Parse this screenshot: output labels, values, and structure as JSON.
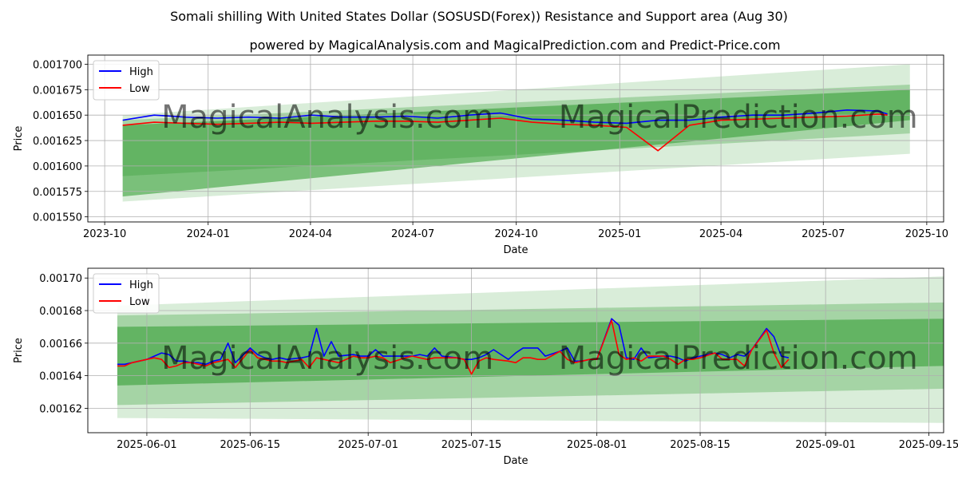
{
  "title": "Somali shilling With United States Dollar (SOSUSD(Forex)) Resistance and Support area (Aug 30)",
  "subtitle": "powered by MagicalAnalysis.com and MagicalPrediction.com and Predict-Price.com",
  "watermark": {
    "top_left": "MagicalAnalysis.com",
    "top_right": "MagicalPrediction.com",
    "bottom_left": "MagicalAnalysis.com",
    "bottom_right": "MagicalPrediction.com"
  },
  "colors": {
    "high": "#0000ff",
    "low": "#ff0000",
    "band": "#2e9a2e"
  },
  "chart_data": [
    {
      "type": "line",
      "xlabel": "Date",
      "ylabel": "Price",
      "x_ticks": [
        "2023-10",
        "2024-01",
        "2024-04",
        "2024-07",
        "2024-10",
        "2025-01",
        "2025-04",
        "2025-07",
        "2025-10"
      ],
      "y_ticks": [
        "0.00155",
        "0.001575",
        "0.0016",
        "0.001625",
        "0.00165",
        "0.001675",
        "0.0017"
      ],
      "y_tick_labels": [
        "0.001550",
        "0.001575",
        "0.001600",
        "0.001625",
        "0.001650",
        "0.001675",
        "0.001700"
      ],
      "xlim": [
        "2023-09-16",
        "2025-10-16"
      ],
      "ylim": [
        0.001545,
        0.001709
      ],
      "legend": "top-left",
      "grid": true,
      "series": [
        {
          "name": "High",
          "x": [
            "2023-10-17",
            "2023-11-14",
            "2023-12-12",
            "2024-01-09",
            "2024-02-06",
            "2024-03-05",
            "2024-04-02",
            "2024-04-30",
            "2024-05-28",
            "2024-06-25",
            "2024-07-23",
            "2024-08-20",
            "2024-09-17",
            "2024-10-15",
            "2024-11-12",
            "2024-12-10",
            "2025-01-07",
            "2025-02-04",
            "2025-03-04",
            "2025-04-01",
            "2025-04-29",
            "2025-05-27",
            "2025-06-24",
            "2025-07-22",
            "2025-08-19",
            "2025-08-27"
          ],
          "values": [
            0.001645,
            0.00165,
            0.001648,
            0.001647,
            0.001648,
            0.001647,
            0.00165,
            0.001648,
            0.001648,
            0.001649,
            0.001647,
            0.00165,
            0.001652,
            0.001646,
            0.001645,
            0.001643,
            0.001642,
            0.001645,
            0.001645,
            0.001648,
            0.00165,
            0.00165,
            0.001652,
            0.001655,
            0.001654,
            0.001651
          ]
        },
        {
          "name": "Low",
          "x": [
            "2023-10-17",
            "2023-11-14",
            "2023-12-12",
            "2024-01-09",
            "2024-02-06",
            "2024-03-05",
            "2024-04-02",
            "2024-04-30",
            "2024-05-28",
            "2024-06-25",
            "2024-07-23",
            "2024-08-20",
            "2024-09-17",
            "2024-10-15",
            "2024-11-12",
            "2024-12-10",
            "2025-01-07",
            "2025-02-04",
            "2025-03-04",
            "2025-04-01",
            "2025-04-29",
            "2025-05-27",
            "2025-06-24",
            "2025-07-22",
            "2025-08-19",
            "2025-08-27"
          ],
          "values": [
            0.00164,
            0.001643,
            0.001642,
            0.001641,
            0.001642,
            0.001643,
            0.001642,
            0.001643,
            0.001644,
            0.001644,
            0.001643,
            0.001645,
            0.001647,
            0.001643,
            0.001641,
            0.00164,
            0.001638,
            0.001615,
            0.00164,
            0.001645,
            0.001646,
            0.001647,
            0.001648,
            0.001649,
            0.001651,
            0.00165
          ]
        }
      ],
      "bands": [
        {
          "x": [
            "2023-10-17",
            "2025-09-16"
          ],
          "lower": [
            0.00157,
            0.001645
          ],
          "upper": [
            0.00164,
            0.001675
          ]
        },
        {
          "x": [
            "2023-10-17",
            "2025-09-16"
          ],
          "lower": [
            0.00159,
            0.001632
          ],
          "upper": [
            0.001645,
            0.00168
          ]
        },
        {
          "x": [
            "2023-10-17",
            "2025-09-16"
          ],
          "lower": [
            0.001565,
            0.001612
          ],
          "upper": [
            0.00165,
            0.0017
          ]
        }
      ]
    },
    {
      "type": "line",
      "xlabel": "Date",
      "ylabel": "Price",
      "x_ticks": [
        "2025-06-01",
        "2025-06-15",
        "2025-07-01",
        "2025-07-15",
        "2025-08-01",
        "2025-08-15",
        "2025-09-01",
        "2025-09-15"
      ],
      "y_ticks": [
        "0.00162",
        "0.00164",
        "0.00166",
        "0.00168",
        "0.0017"
      ],
      "y_tick_labels": [
        "0.00162",
        "0.00164",
        "0.00166",
        "0.00168",
        "0.00170"
      ],
      "xlim": [
        "2025-05-24",
        "2025-09-17"
      ],
      "ylim": [
        0.001605,
        0.001706
      ],
      "legend": "top-left",
      "grid": true,
      "series": [
        {
          "name": "High",
          "x": [
            "2025-05-28",
            "2025-05-29",
            "2025-05-30",
            "2025-06-01",
            "2025-06-02",
            "2025-06-03",
            "2025-06-04",
            "2025-06-05",
            "2025-06-06",
            "2025-06-07",
            "2025-06-08",
            "2025-06-09",
            "2025-06-10",
            "2025-06-11",
            "2025-06-12",
            "2025-06-13",
            "2025-06-15",
            "2025-06-16",
            "2025-06-17",
            "2025-06-18",
            "2025-06-19",
            "2025-06-20",
            "2025-06-22",
            "2025-06-23",
            "2025-06-24",
            "2025-06-25",
            "2025-06-26",
            "2025-06-27",
            "2025-06-29",
            "2025-06-30",
            "2025-07-01",
            "2025-07-02",
            "2025-07-03",
            "2025-07-04",
            "2025-07-06",
            "2025-07-07",
            "2025-07-08",
            "2025-07-09",
            "2025-07-10",
            "2025-07-11",
            "2025-07-13",
            "2025-07-14",
            "2025-07-15",
            "2025-07-16",
            "2025-07-17",
            "2025-07-18",
            "2025-07-20",
            "2025-07-21",
            "2025-07-22",
            "2025-07-23",
            "2025-07-24",
            "2025-07-25",
            "2025-07-27",
            "2025-07-28",
            "2025-07-29",
            "2025-07-30",
            "2025-07-31",
            "2025-08-01",
            "2025-08-03",
            "2025-08-04",
            "2025-08-05",
            "2025-08-06",
            "2025-08-07",
            "2025-08-08",
            "2025-08-10",
            "2025-08-11",
            "2025-08-12",
            "2025-08-13",
            "2025-08-14",
            "2025-08-15",
            "2025-08-17",
            "2025-08-18",
            "2025-08-19",
            "2025-08-20",
            "2025-08-21",
            "2025-08-22",
            "2025-08-24",
            "2025-08-25",
            "2025-08-26",
            "2025-08-27"
          ],
          "values": [
            0.001647,
            0.001647,
            0.001648,
            0.00165,
            0.001652,
            0.001654,
            0.001653,
            0.001649,
            0.001649,
            0.001648,
            0.001648,
            0.001647,
            0.001649,
            0.00165,
            0.00166,
            0.001648,
            0.001657,
            0.001653,
            0.001651,
            0.00165,
            0.001651,
            0.00165,
            0.001651,
            0.001652,
            0.001669,
            0.001652,
            0.001661,
            0.001652,
            0.001653,
            0.001652,
            0.001652,
            0.001656,
            0.001652,
            0.001652,
            0.001652,
            0.001652,
            0.001653,
            0.001652,
            0.001657,
            0.001652,
            0.001651,
            0.00165,
            0.00165,
            0.001651,
            0.001653,
            0.001656,
            0.00165,
            0.001654,
            0.001657,
            0.001657,
            0.001657,
            0.001652,
            0.001655,
            0.001657,
            0.001649,
            0.001649,
            0.00165,
            0.00165,
            0.001675,
            0.001671,
            0.001651,
            0.00165,
            0.001657,
            0.001651,
            0.001652,
            0.001652,
            0.001651,
            0.001649,
            0.001651,
            0.001652,
            0.001654,
            0.001653,
            0.001651,
            0.001653,
            0.001652,
            0.001656,
            0.001669,
            0.001664,
            0.001652,
            0.001651
          ]
        },
        {
          "name": "Low",
          "x": [
            "2025-05-28",
            "2025-05-29",
            "2025-05-30",
            "2025-06-01",
            "2025-06-02",
            "2025-06-03",
            "2025-06-04",
            "2025-06-05",
            "2025-06-06",
            "2025-06-07",
            "2025-06-08",
            "2025-06-09",
            "2025-06-10",
            "2025-06-11",
            "2025-06-12",
            "2025-06-13",
            "2025-06-15",
            "2025-06-16",
            "2025-06-17",
            "2025-06-18",
            "2025-06-19",
            "2025-06-20",
            "2025-06-22",
            "2025-06-23",
            "2025-06-24",
            "2025-06-25",
            "2025-06-26",
            "2025-06-27",
            "2025-06-29",
            "2025-06-30",
            "2025-07-01",
            "2025-07-02",
            "2025-07-03",
            "2025-07-04",
            "2025-07-06",
            "2025-07-07",
            "2025-07-08",
            "2025-07-09",
            "2025-07-10",
            "2025-07-11",
            "2025-07-13",
            "2025-07-14",
            "2025-07-15",
            "2025-07-16",
            "2025-07-17",
            "2025-07-18",
            "2025-07-20",
            "2025-07-21",
            "2025-07-22",
            "2025-07-23",
            "2025-07-24",
            "2025-07-25",
            "2025-07-27",
            "2025-07-28",
            "2025-07-29",
            "2025-07-30",
            "2025-07-31",
            "2025-08-01",
            "2025-08-03",
            "2025-08-04",
            "2025-08-05",
            "2025-08-06",
            "2025-08-07",
            "2025-08-08",
            "2025-08-10",
            "2025-08-11",
            "2025-08-12",
            "2025-08-13",
            "2025-08-14",
            "2025-08-15",
            "2025-08-17",
            "2025-08-18",
            "2025-08-19",
            "2025-08-20",
            "2025-08-21",
            "2025-08-22",
            "2025-08-24",
            "2025-08-25",
            "2025-08-26",
            "2025-08-27"
          ],
          "values": [
            0.001646,
            0.001646,
            0.001648,
            0.00165,
            0.001651,
            0.00165,
            0.001645,
            0.001646,
            0.001648,
            0.001648,
            0.001647,
            0.001646,
            0.001648,
            0.001649,
            0.00165,
            0.001645,
            0.001656,
            0.001651,
            0.00165,
            0.001649,
            0.001649,
            0.001648,
            0.00165,
            0.001645,
            0.001651,
            0.00165,
            0.001649,
            0.001648,
            0.001652,
            0.001651,
            0.001651,
            0.001652,
            0.001651,
            0.001648,
            0.001651,
            0.001652,
            0.001651,
            0.00165,
            0.001651,
            0.001651,
            0.001651,
            0.00165,
            0.001641,
            0.001649,
            0.001651,
            0.00165,
            0.001649,
            0.001648,
            0.001651,
            0.001651,
            0.00165,
            0.00165,
            0.001655,
            0.00165,
            0.001648,
            0.001649,
            0.00165,
            0.00165,
            0.001674,
            0.001653,
            0.00165,
            0.001651,
            0.001649,
            0.001652,
            0.001652,
            0.00165,
            0.001647,
            0.00165,
            0.00165,
            0.001651,
            0.001654,
            0.00165,
            0.00165,
            0.00165,
            0.001646,
            0.001656,
            0.001668,
            0.001654,
            0.001645,
            0.00165
          ]
        }
      ],
      "bands": [
        {
          "x": [
            "2025-05-28",
            "2025-09-17"
          ],
          "lower": [
            0.001634,
            0.001646
          ],
          "upper": [
            0.00167,
            0.001675
          ]
        },
        {
          "x": [
            "2025-05-28",
            "2025-09-17"
          ],
          "lower": [
            0.001622,
            0.001632
          ],
          "upper": [
            0.001677,
            0.001685
          ]
        },
        {
          "x": [
            "2025-05-28",
            "2025-09-17"
          ],
          "lower": [
            0.001614,
            0.001611
          ],
          "upper": [
            0.001683,
            0.001701
          ]
        }
      ]
    }
  ],
  "legend_labels": {
    "high": "High",
    "low": "Low"
  }
}
